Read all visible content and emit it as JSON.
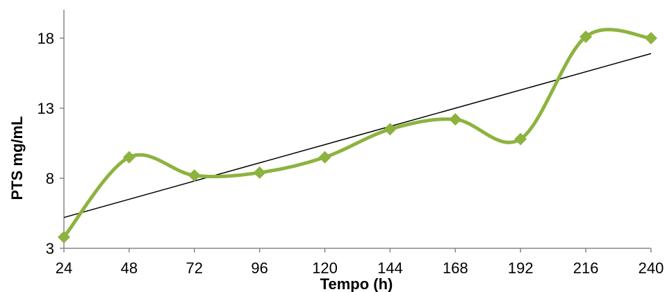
{
  "chart_data": {
    "type": "line",
    "title": "",
    "xlabel": "Tempo (h)",
    "ylabel": "PTS mg/mL",
    "x": [
      24,
      48,
      72,
      96,
      120,
      144,
      168,
      192,
      216,
      240
    ],
    "y_ticks": [
      3,
      8,
      13,
      18
    ],
    "ylim": [
      3,
      18
    ],
    "series": [
      {
        "values": [
          3.8,
          9.5,
          8.2,
          8.4,
          9.5,
          11.5,
          12.2,
          10.8,
          18.1,
          18.0
        ],
        "color": "#8db33f",
        "marker": "diamond",
        "smooth": true
      }
    ],
    "trendline": {
      "type": "linear",
      "start": 5.2,
      "end": 16.9,
      "color": "#000000"
    },
    "grid": false,
    "legend": "none"
  }
}
